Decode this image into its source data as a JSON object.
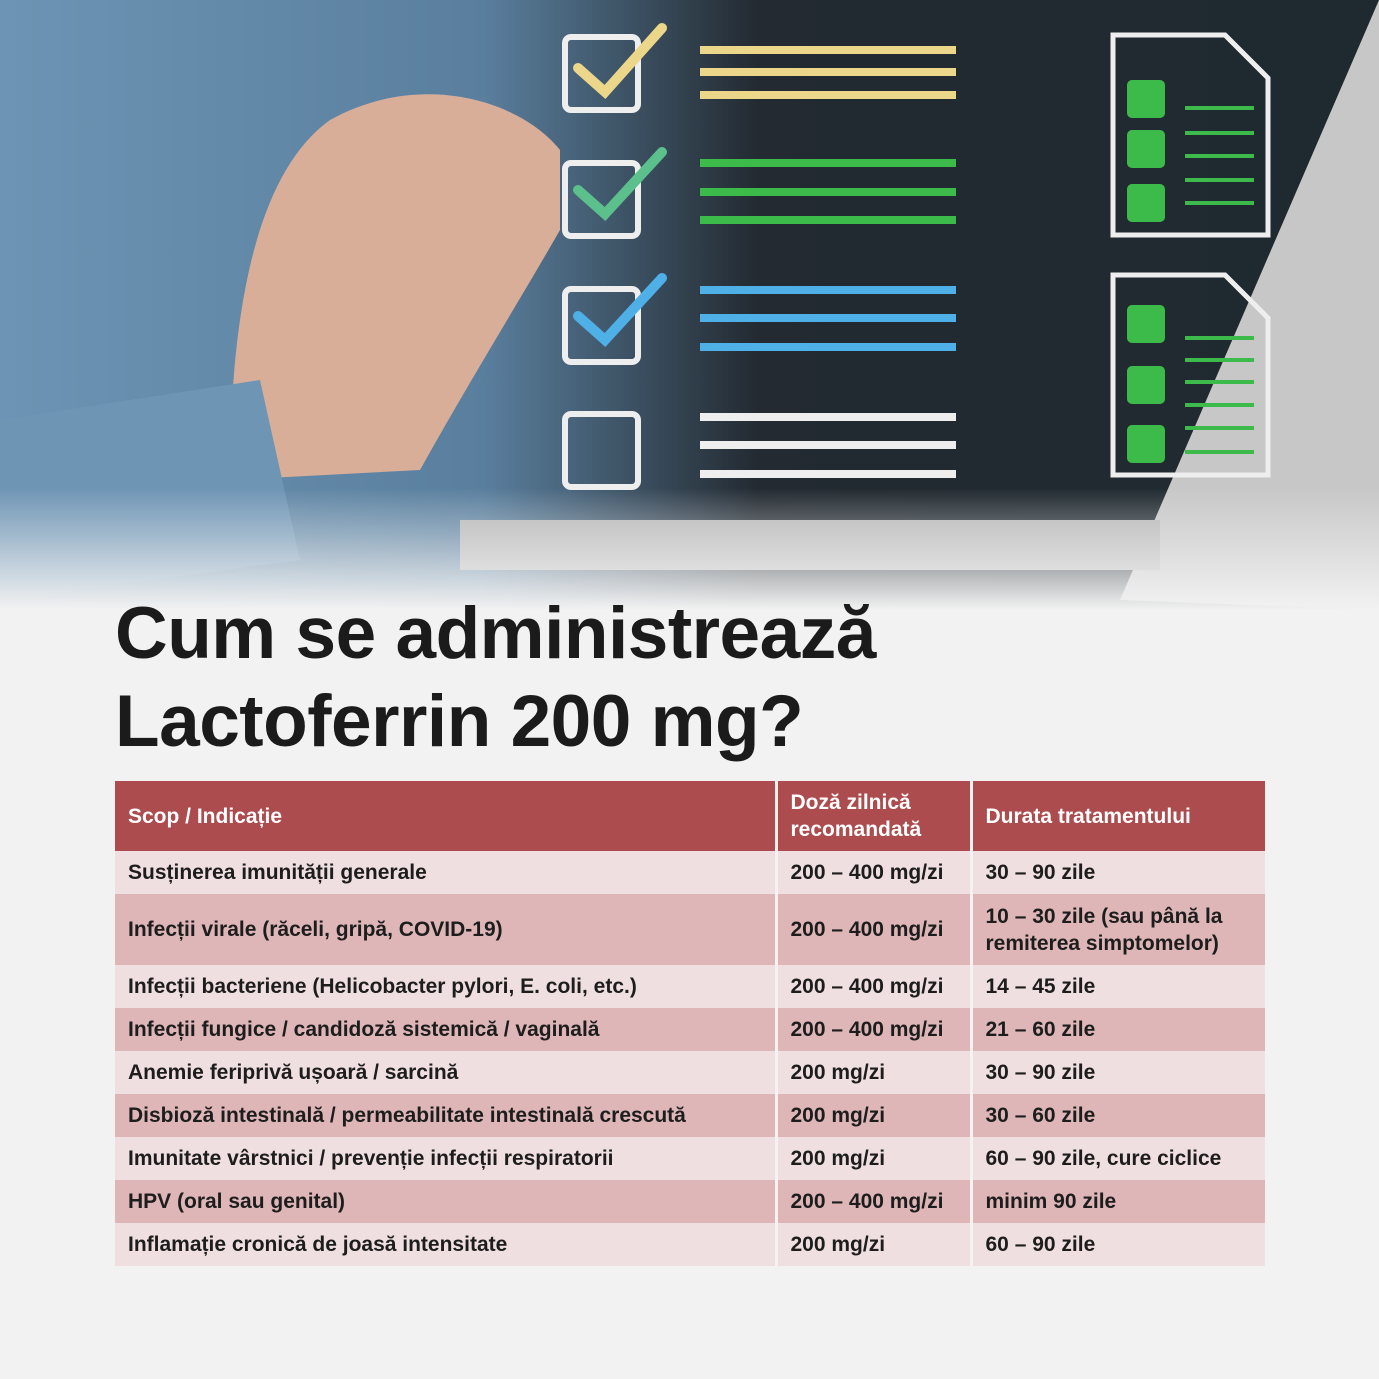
{
  "title": {
    "line1": "Cum se administrează",
    "line2": "Lactoferrin 200 mg?"
  },
  "colors": {
    "header": "#ac4c4f",
    "row_light": "#f0dfe0",
    "row_dark": "#deb6b7",
    "check_yellow": "#ecd68a",
    "check_green": "#3dbb4a",
    "check_blue": "#4fb0e8"
  },
  "hero": {
    "icons": [
      "pen-hand-photo",
      "checklist-icon",
      "document-checklist-icon",
      "laptop-photo"
    ]
  },
  "table": {
    "headers": [
      "Scop / Indicație",
      "Doză zilnică recomandată",
      "Durata tratamentului"
    ],
    "rows": [
      [
        "Susținerea imunității generale",
        "200 – 400 mg/zi",
        "30 – 90 zile"
      ],
      [
        "Infecții virale (răceli, gripă, COVID-19)",
        "200 – 400 mg/zi",
        "10 – 30 zile (sau până la remiterea simptomelor)"
      ],
      [
        "Infecții bacteriene (Helicobacter pylori, E. coli, etc.)",
        "200 – 400 mg/zi",
        "14 – 45 zile"
      ],
      [
        "Infecții fungice / candidoză sistemică / vaginală",
        "200 – 400 mg/zi",
        "21 – 60 zile"
      ],
      [
        "Anemie feriprivă ușoară / sarcină",
        "200 mg/zi",
        "30 – 90 zile"
      ],
      [
        "Disbioză intestinală / permeabilitate intestinală crescută",
        "200 mg/zi",
        "30 – 60 zile"
      ],
      [
        "Imunitate vârstnici / prevenție infecții respiratorii",
        "200 mg/zi",
        "60 – 90 zile, cure ciclice"
      ],
      [
        "HPV (oral sau genital)",
        "200 – 400 mg/zi",
        "minim 90 zile"
      ],
      [
        "Inflamație cronică de joasă intensitate",
        "200 mg/zi",
        "60 – 90 zile"
      ]
    ]
  }
}
